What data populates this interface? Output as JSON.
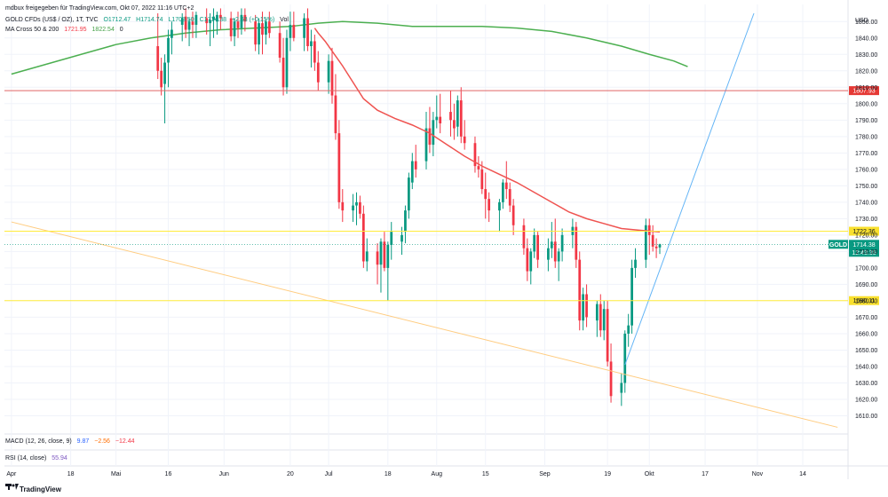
{
  "header": {
    "attribution": "mdbux freigegeben für TradingView.com, Okt 07, 2022 11:16 UTC+2",
    "symbol": "GOLD CFDs (US$ / OZ), 1T, TVC",
    "ohlc": {
      "o": "O1712.47",
      "h": "H1714.74",
      "l": "L1708.50",
      "c": "C1714.38",
      "change": "+2.63 (+0.15%)",
      "vol": "Vol"
    },
    "ma_label": "MA Cross 50 & 200",
    "ma_fast": "1721.95",
    "ma_slow": "1822.54",
    "ma_extra": "0"
  },
  "indicators": {
    "macd_label": "MACD (12, 26, close, 9)",
    "macd_values": [
      "9.87",
      "−2.56",
      "−12.44"
    ],
    "rsi_label": "RSI (14, close)",
    "rsi_value": "55.94"
  },
  "footer": {
    "logo_text": "TradingView"
  },
  "colors": {
    "up": "#089981",
    "down": "#f23645",
    "ma50": "#ef5350",
    "ma200": "#4caf50",
    "hline_red": "#e06666",
    "hline_yellow": "#ffeb3b",
    "trend_orange": "#ffcc80",
    "trend_blue": "#64b5f6"
  },
  "chart_data": {
    "type": "candlestick",
    "currency": "USD",
    "ylim": [
      1600,
      1855
    ],
    "yticks": [
      1610,
      1620,
      1630,
      1640,
      1650,
      1660,
      1670,
      1680,
      1690,
      1700,
      1710,
      1720,
      1730,
      1740,
      1750,
      1760,
      1770,
      1780,
      1790,
      1800,
      1810,
      1820,
      1830,
      1840,
      1850
    ],
    "xticks": [
      {
        "label": "Apr",
        "day": 0
      },
      {
        "label": "18",
        "day": 17
      },
      {
        "label": "Mai",
        "day": 30
      },
      {
        "label": "16",
        "day": 45
      },
      {
        "label": "Jun",
        "day": 61
      },
      {
        "label": "20",
        "day": 80
      },
      {
        "label": "Jul",
        "day": 91
      },
      {
        "label": "18",
        "day": 108
      },
      {
        "label": "Aug",
        "day": 122
      },
      {
        "label": "15",
        "day": 136
      },
      {
        "label": "Sep",
        "day": 153
      },
      {
        "label": "19",
        "day": 171
      },
      {
        "label": "Okt",
        "day": 183
      },
      {
        "label": "17",
        "day": 199
      },
      {
        "label": "Nov",
        "day": 214
      },
      {
        "label": "14",
        "day": 227
      }
    ],
    "candles": [
      {
        "day": 42,
        "o": 1835,
        "h": 1855,
        "l": 1815,
        "c": 1820
      },
      {
        "day": 43,
        "o": 1820,
        "h": 1828,
        "l": 1805,
        "c": 1810
      },
      {
        "day": 44,
        "o": 1812,
        "h": 1830,
        "l": 1788,
        "c": 1825
      },
      {
        "day": 45,
        "o": 1825,
        "h": 1845,
        "l": 1810,
        "c": 1840
      },
      {
        "day": 46,
        "o": 1840,
        "h": 1850,
        "l": 1830,
        "c": 1845
      },
      {
        "day": 49,
        "o": 1848,
        "h": 1855,
        "l": 1838,
        "c": 1852
      },
      {
        "day": 50,
        "o": 1853,
        "h": 1858,
        "l": 1840,
        "c": 1845
      },
      {
        "day": 51,
        "o": 1845,
        "h": 1852,
        "l": 1835,
        "c": 1850
      },
      {
        "day": 52,
        "o": 1850,
        "h": 1856,
        "l": 1840,
        "c": 1848
      },
      {
        "day": 53,
        "o": 1848,
        "h": 1856,
        "l": 1840,
        "c": 1854
      },
      {
        "day": 56,
        "o": 1852,
        "h": 1858,
        "l": 1842,
        "c": 1849
      },
      {
        "day": 57,
        "o": 1849,
        "h": 1855,
        "l": 1835,
        "c": 1851
      },
      {
        "day": 58,
        "o": 1851,
        "h": 1858,
        "l": 1840,
        "c": 1853
      },
      {
        "day": 59,
        "o": 1850,
        "h": 1856,
        "l": 1842,
        "c": 1854
      },
      {
        "day": 60,
        "o": 1854,
        "h": 1858,
        "l": 1845,
        "c": 1852
      },
      {
        "day": 63,
        "o": 1852,
        "h": 1856,
        "l": 1838,
        "c": 1841
      },
      {
        "day": 64,
        "o": 1841,
        "h": 1852,
        "l": 1835,
        "c": 1850
      },
      {
        "day": 65,
        "o": 1850,
        "h": 1856,
        "l": 1840,
        "c": 1846
      },
      {
        "day": 66,
        "o": 1846,
        "h": 1858,
        "l": 1842,
        "c": 1854
      },
      {
        "day": 67,
        "o": 1854,
        "h": 1858,
        "l": 1844,
        "c": 1850
      },
      {
        "day": 70,
        "o": 1850,
        "h": 1854,
        "l": 1832,
        "c": 1836
      },
      {
        "day": 71,
        "o": 1836,
        "h": 1852,
        "l": 1830,
        "c": 1849
      },
      {
        "day": 72,
        "o": 1849,
        "h": 1856,
        "l": 1830,
        "c": 1842
      },
      {
        "day": 73,
        "o": 1842,
        "h": 1852,
        "l": 1836,
        "c": 1850
      },
      {
        "day": 74,
        "o": 1850,
        "h": 1856,
        "l": 1840,
        "c": 1843
      },
      {
        "day": 77,
        "o": 1843,
        "h": 1850,
        "l": 1825,
        "c": 1828
      },
      {
        "day": 78,
        "o": 1828,
        "h": 1840,
        "l": 1805,
        "c": 1810
      },
      {
        "day": 79,
        "o": 1810,
        "h": 1845,
        "l": 1806,
        "c": 1840
      },
      {
        "day": 80,
        "o": 1840,
        "h": 1856,
        "l": 1832,
        "c": 1848
      },
      {
        "day": 81,
        "o": 1848,
        "h": 1856,
        "l": 1838,
        "c": 1840
      },
      {
        "day": 84,
        "o": 1840,
        "h": 1855,
        "l": 1832,
        "c": 1852
      },
      {
        "day": 85,
        "o": 1852,
        "h": 1858,
        "l": 1832,
        "c": 1835
      },
      {
        "day": 86,
        "o": 1835,
        "h": 1845,
        "l": 1822,
        "c": 1838
      },
      {
        "day": 87,
        "o": 1838,
        "h": 1842,
        "l": 1820,
        "c": 1825
      },
      {
        "day": 88,
        "o": 1825,
        "h": 1832,
        "l": 1808,
        "c": 1813
      },
      {
        "day": 91,
        "o": 1813,
        "h": 1830,
        "l": 1806,
        "c": 1826
      },
      {
        "day": 92,
        "o": 1826,
        "h": 1834,
        "l": 1800,
        "c": 1805
      },
      {
        "day": 93,
        "o": 1805,
        "h": 1818,
        "l": 1778,
        "c": 1782
      },
      {
        "day": 94,
        "o": 1782,
        "h": 1790,
        "l": 1736,
        "c": 1740
      },
      {
        "day": 95,
        "o": 1740,
        "h": 1748,
        "l": 1728,
        "c": 1735
      },
      {
        "day": 98,
        "o": 1735,
        "h": 1745,
        "l": 1728,
        "c": 1738
      },
      {
        "day": 99,
        "o": 1738,
        "h": 1746,
        "l": 1726,
        "c": 1740
      },
      {
        "day": 100,
        "o": 1740,
        "h": 1744,
        "l": 1730,
        "c": 1733
      },
      {
        "day": 101,
        "o": 1733,
        "h": 1738,
        "l": 1700,
        "c": 1704
      },
      {
        "day": 102,
        "o": 1704,
        "h": 1718,
        "l": 1698,
        "c": 1710
      },
      {
        "day": 105,
        "o": 1710,
        "h": 1715,
        "l": 1690,
        "c": 1702
      },
      {
        "day": 106,
        "o": 1702,
        "h": 1718,
        "l": 1685,
        "c": 1716
      },
      {
        "day": 107,
        "o": 1716,
        "h": 1722,
        "l": 1698,
        "c": 1700
      },
      {
        "day": 108,
        "o": 1700,
        "h": 1716,
        "l": 1680,
        "c": 1714
      },
      {
        "day": 109,
        "o": 1714,
        "h": 1728,
        "l": 1705,
        "c": 1722
      },
      {
        "day": 112,
        "o": 1716,
        "h": 1725,
        "l": 1708,
        "c": 1720
      },
      {
        "day": 113,
        "o": 1722,
        "h": 1738,
        "l": 1715,
        "c": 1735
      },
      {
        "day": 114,
        "o": 1735,
        "h": 1758,
        "l": 1730,
        "c": 1755
      },
      {
        "day": 115,
        "o": 1752,
        "h": 1770,
        "l": 1748,
        "c": 1765
      },
      {
        "day": 116,
        "o": 1765,
        "h": 1775,
        "l": 1755,
        "c": 1760
      },
      {
        "day": 119,
        "o": 1765,
        "h": 1795,
        "l": 1760,
        "c": 1785
      },
      {
        "day": 120,
        "o": 1785,
        "h": 1798,
        "l": 1770,
        "c": 1775
      },
      {
        "day": 121,
        "o": 1775,
        "h": 1795,
        "l": 1768,
        "c": 1790
      },
      {
        "day": 122,
        "o": 1790,
        "h": 1805,
        "l": 1785,
        "c": 1792
      },
      {
        "day": 123,
        "o": 1792,
        "h": 1806,
        "l": 1782,
        "c": 1788
      },
      {
        "day": 126,
        "o": 1795,
        "h": 1808,
        "l": 1780,
        "c": 1790
      },
      {
        "day": 127,
        "o": 1790,
        "h": 1800,
        "l": 1778,
        "c": 1785
      },
      {
        "day": 128,
        "o": 1786,
        "h": 1805,
        "l": 1780,
        "c": 1802
      },
      {
        "day": 129,
        "o": 1802,
        "h": 1810,
        "l": 1776,
        "c": 1780
      },
      {
        "day": 130,
        "o": 1780,
        "h": 1790,
        "l": 1772,
        "c": 1776
      },
      {
        "day": 133,
        "o": 1776,
        "h": 1780,
        "l": 1758,
        "c": 1762
      },
      {
        "day": 134,
        "o": 1762,
        "h": 1768,
        "l": 1755,
        "c": 1760
      },
      {
        "day": 135,
        "o": 1760,
        "h": 1765,
        "l": 1745,
        "c": 1748
      },
      {
        "day": 136,
        "o": 1748,
        "h": 1758,
        "l": 1730,
        "c": 1742
      },
      {
        "day": 137,
        "o": 1742,
        "h": 1746,
        "l": 1728,
        "c": 1735
      },
      {
        "day": 140,
        "o": 1735,
        "h": 1742,
        "l": 1722,
        "c": 1740
      },
      {
        "day": 141,
        "o": 1740,
        "h": 1754,
        "l": 1736,
        "c": 1752
      },
      {
        "day": 142,
        "o": 1752,
        "h": 1765,
        "l": 1742,
        "c": 1748
      },
      {
        "day": 143,
        "o": 1748,
        "h": 1752,
        "l": 1734,
        "c": 1738
      },
      {
        "day": 144,
        "o": 1738,
        "h": 1742,
        "l": 1720,
        "c": 1726
      },
      {
        "day": 147,
        "o": 1726,
        "h": 1730,
        "l": 1708,
        "c": 1712
      },
      {
        "day": 148,
        "o": 1712,
        "h": 1718,
        "l": 1692,
        "c": 1698
      },
      {
        "day": 149,
        "o": 1698,
        "h": 1712,
        "l": 1690,
        "c": 1710
      },
      {
        "day": 150,
        "o": 1710,
        "h": 1724,
        "l": 1706,
        "c": 1720
      },
      {
        "day": 151,
        "o": 1720,
        "h": 1722,
        "l": 1700,
        "c": 1705
      },
      {
        "day": 154,
        "o": 1705,
        "h": 1718,
        "l": 1698,
        "c": 1712
      },
      {
        "day": 155,
        "o": 1712,
        "h": 1728,
        "l": 1706,
        "c": 1716
      },
      {
        "day": 156,
        "o": 1716,
        "h": 1730,
        "l": 1700,
        "c": 1704
      },
      {
        "day": 157,
        "o": 1704,
        "h": 1712,
        "l": 1692,
        "c": 1710
      },
      {
        "day": 158,
        "o": 1710,
        "h": 1724,
        "l": 1704,
        "c": 1720
      },
      {
        "day": 161,
        "o": 1720,
        "h": 1730,
        "l": 1712,
        "c": 1725
      },
      {
        "day": 162,
        "o": 1725,
        "h": 1728,
        "l": 1700,
        "c": 1705
      },
      {
        "day": 163,
        "o": 1705,
        "h": 1710,
        "l": 1662,
        "c": 1668
      },
      {
        "day": 164,
        "o": 1668,
        "h": 1688,
        "l": 1662,
        "c": 1684
      },
      {
        "day": 165,
        "o": 1684,
        "h": 1690,
        "l": 1664,
        "c": 1670
      },
      {
        "day": 168,
        "o": 1668,
        "h": 1680,
        "l": 1658,
        "c": 1678
      },
      {
        "day": 169,
        "o": 1678,
        "h": 1684,
        "l": 1658,
        "c": 1662
      },
      {
        "day": 170,
        "o": 1662,
        "h": 1680,
        "l": 1656,
        "c": 1675
      },
      {
        "day": 171,
        "o": 1675,
        "h": 1680,
        "l": 1640,
        "c": 1643
      },
      {
        "day": 172,
        "o": 1643,
        "h": 1654,
        "l": 1618,
        "c": 1622
      },
      {
        "day": 175,
        "o": 1624,
        "h": 1636,
        "l": 1616,
        "c": 1630
      },
      {
        "day": 176,
        "o": 1630,
        "h": 1662,
        "l": 1624,
        "c": 1660
      },
      {
        "day": 177,
        "o": 1660,
        "h": 1672,
        "l": 1652,
        "c": 1665
      },
      {
        "day": 178,
        "o": 1665,
        "h": 1705,
        "l": 1660,
        "c": 1700
      },
      {
        "day": 179,
        "o": 1700,
        "h": 1712,
        "l": 1694,
        "c": 1705
      },
      {
        "day": 182,
        "o": 1705,
        "h": 1730,
        "l": 1700,
        "c": 1726
      },
      {
        "day": 183,
        "o": 1726,
        "h": 1730,
        "l": 1708,
        "c": 1720
      },
      {
        "day": 184,
        "o": 1720,
        "h": 1726,
        "l": 1710,
        "c": 1713
      },
      {
        "day": 185,
        "o": 1713,
        "h": 1718,
        "l": 1706,
        "c": 1712
      },
      {
        "day": 186,
        "o": 1712.47,
        "h": 1714.74,
        "l": 1708.5,
        "c": 1714.38
      }
    ],
    "ma50": [
      [
        87,
        1846
      ],
      [
        88,
        1843
      ],
      [
        90,
        1838
      ],
      [
        92,
        1832
      ],
      [
        95,
        1823
      ],
      [
        98,
        1813
      ],
      [
        101,
        1803
      ],
      [
        105,
        1796
      ],
      [
        110,
        1791
      ],
      [
        115,
        1787
      ],
      [
        120,
        1782
      ],
      [
        125,
        1775
      ],
      [
        130,
        1768
      ],
      [
        135,
        1762
      ],
      [
        140,
        1757
      ],
      [
        145,
        1752
      ],
      [
        150,
        1746
      ],
      [
        155,
        1740
      ],
      [
        160,
        1734
      ],
      [
        165,
        1730
      ],
      [
        170,
        1727
      ],
      [
        175,
        1724
      ],
      [
        180,
        1723
      ],
      [
        186,
        1721.95
      ]
    ],
    "ma200": [
      [
        0,
        1818
      ],
      [
        10,
        1824
      ],
      [
        20,
        1830
      ],
      [
        30,
        1836
      ],
      [
        40,
        1840
      ],
      [
        50,
        1843
      ],
      [
        60,
        1845
      ],
      [
        70,
        1846
      ],
      [
        80,
        1847
      ],
      [
        88,
        1849
      ],
      [
        95,
        1850
      ],
      [
        105,
        1849
      ],
      [
        115,
        1847
      ],
      [
        125,
        1847
      ],
      [
        135,
        1847
      ],
      [
        145,
        1846
      ],
      [
        155,
        1844
      ],
      [
        165,
        1840
      ],
      [
        175,
        1835
      ],
      [
        183,
        1830
      ],
      [
        190,
        1826
      ],
      [
        194,
        1822.54
      ]
    ],
    "hlines": [
      {
        "value": 1807.93,
        "label": "1807.93",
        "color": "#e06666",
        "labelColor": "#e53935"
      },
      {
        "value": 1722.36,
        "label": "1722.36",
        "color": "#ffeb3b",
        "labelColor": "#f9e02d"
      },
      {
        "value": 1680.11,
        "label": "1680.11",
        "color": "#ffeb3b",
        "labelColor": "#f9e02d"
      }
    ],
    "last_price": {
      "value": 1714.38,
      "label": "1714.38",
      "countdown": "12:43:35",
      "symbol": "GOLD"
    },
    "trendlines": [
      {
        "from": [
          0,
          1728
        ],
        "to": [
          237,
          1603
        ],
        "color": "#ffcc80"
      },
      {
        "from": [
          176,
          1641
        ],
        "to": [
          213,
          1855
        ],
        "color": "#64b5f6"
      }
    ]
  }
}
